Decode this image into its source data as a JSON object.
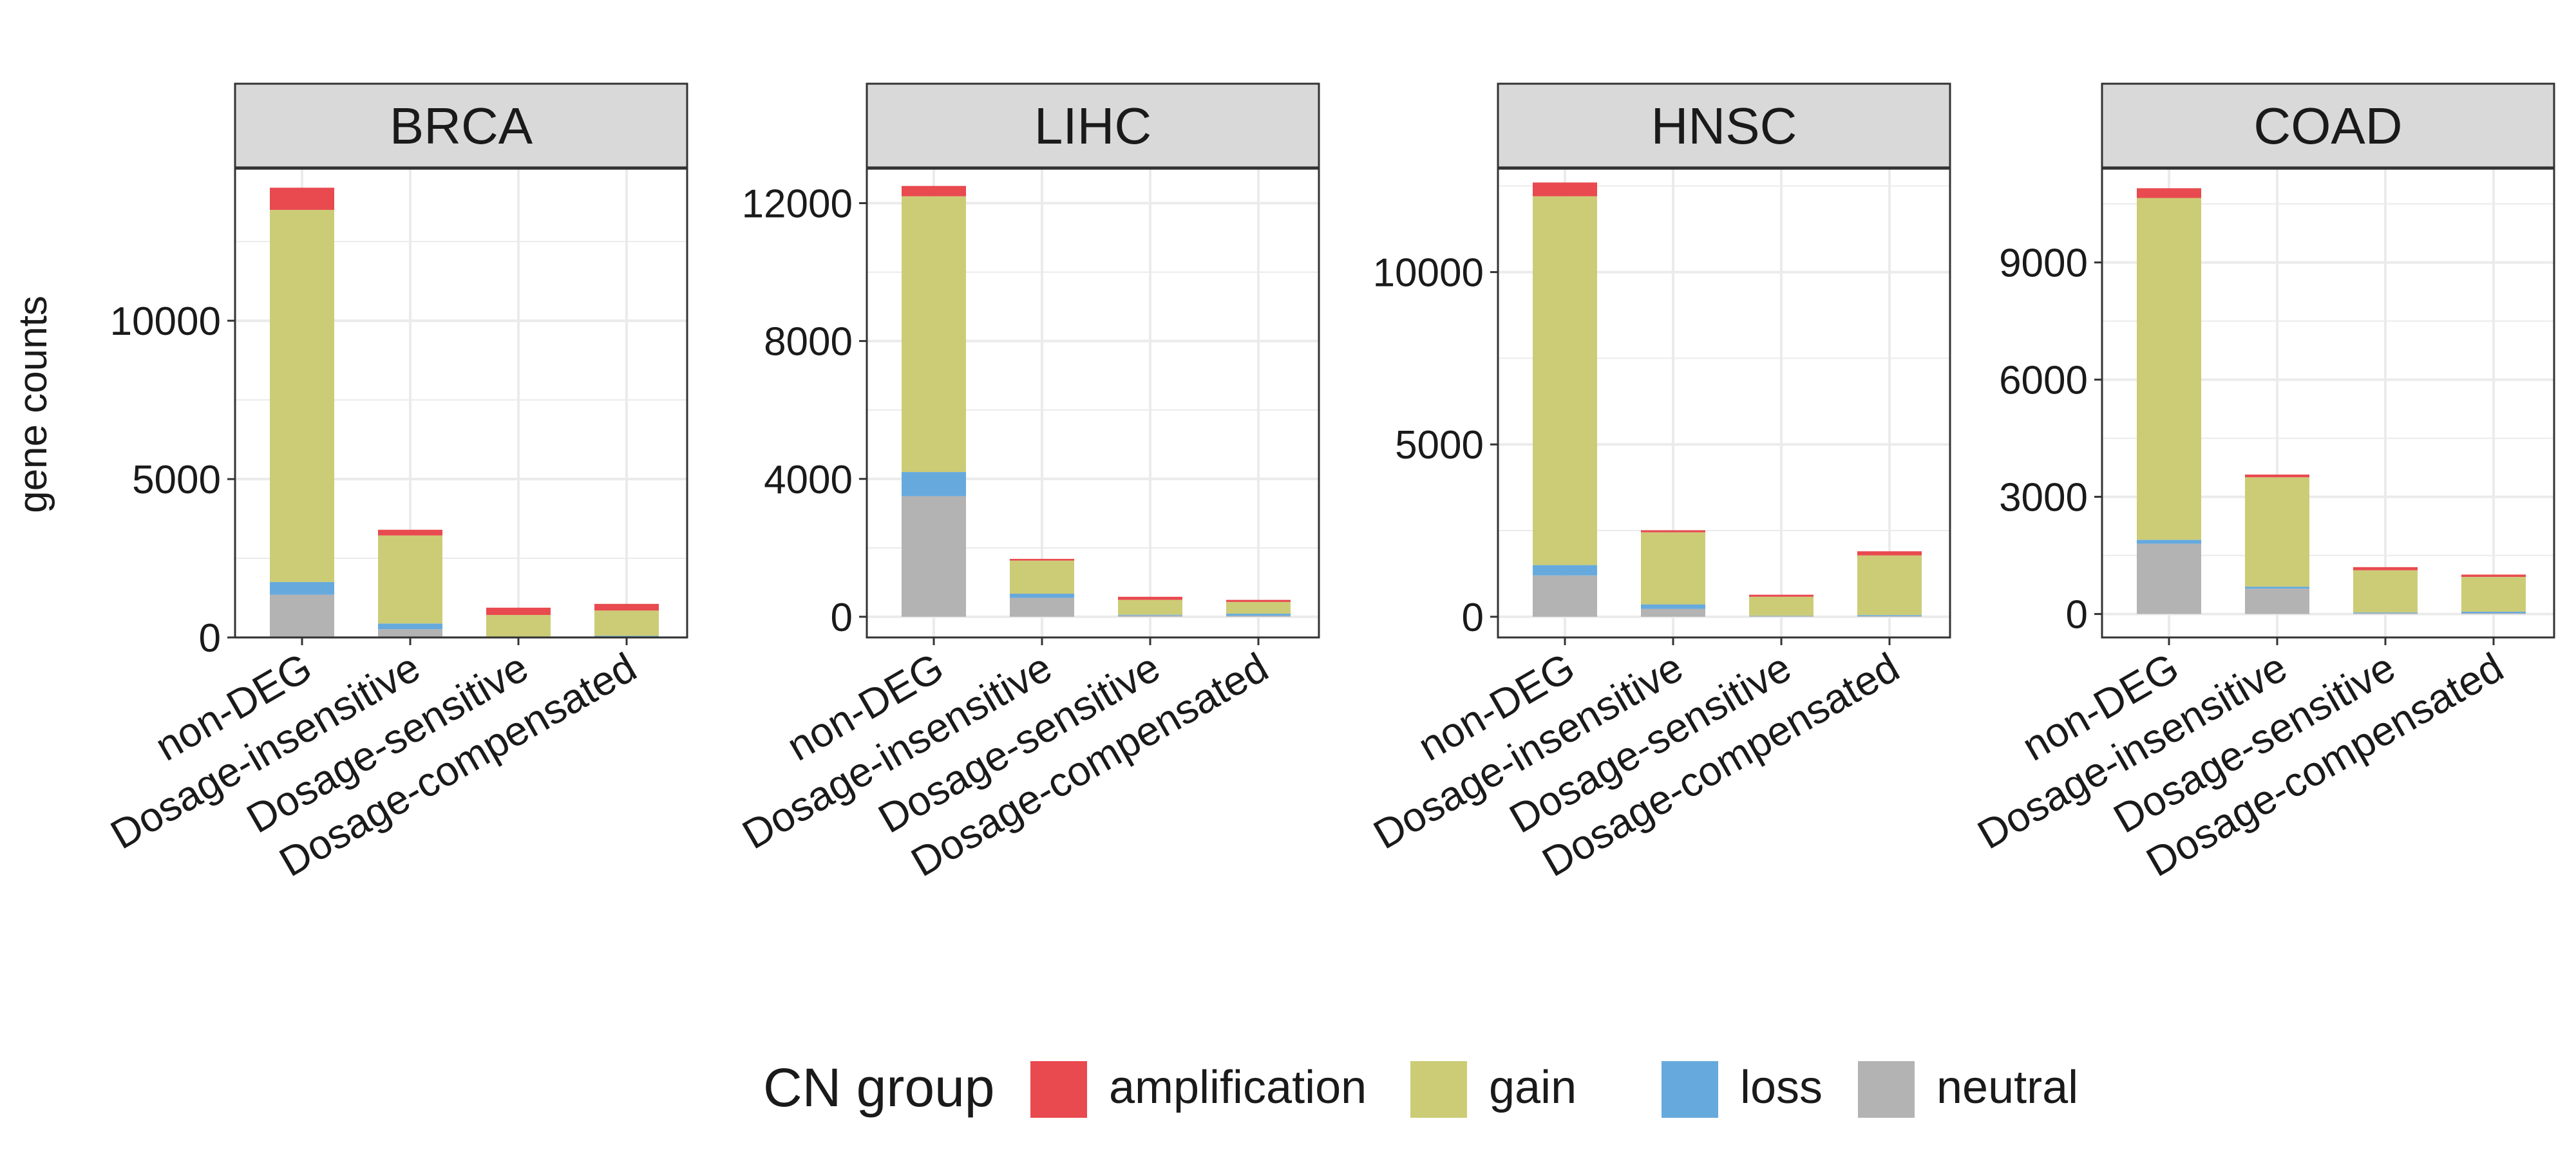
{
  "chart_data": [
    {
      "type": "bar",
      "stacked": true,
      "title": "BRCA",
      "categories": [
        "non-DEG",
        "Dosage-insensitive",
        "Dosage-sensitive",
        "Dosage-compensated"
      ],
      "ylim": [
        0,
        14800
      ],
      "yticks": [
        0,
        5000,
        10000
      ],
      "ytick_labels": [
        "0",
        "5000",
        "10000"
      ],
      "series": [
        {
          "name": "neutral",
          "values": [
            1350,
            260,
            20,
            30
          ]
        },
        {
          "name": "loss",
          "values": [
            400,
            180,
            10,
            20
          ]
        },
        {
          "name": "gain",
          "values": [
            11750,
            2780,
            680,
            800
          ]
        },
        {
          "name": "amplification",
          "values": [
            700,
            180,
            230,
            210
          ]
        }
      ]
    },
    {
      "type": "bar",
      "stacked": true,
      "title": "LIHC",
      "categories": [
        "non-DEG",
        "Dosage-insensitive",
        "Dosage-sensitive",
        "Dosage-compensated"
      ],
      "ylim": [
        -600,
        13000
      ],
      "yticks": [
        0,
        4000,
        8000,
        12000
      ],
      "ytick_labels": [
        "0",
        "4000",
        "8000",
        "12000"
      ],
      "series": [
        {
          "name": "neutral",
          "values": [
            3500,
            550,
            40,
            30
          ]
        },
        {
          "name": "loss",
          "values": [
            700,
            120,
            20,
            60
          ]
        },
        {
          "name": "gain",
          "values": [
            8000,
            960,
            430,
            340
          ]
        },
        {
          "name": "amplification",
          "values": [
            300,
            50,
            90,
            60
          ]
        }
      ]
    },
    {
      "type": "bar",
      "stacked": true,
      "title": "HNSC",
      "categories": [
        "non-DEG",
        "Dosage-insensitive",
        "Dosage-sensitive",
        "Dosage-compensated"
      ],
      "ylim": [
        -600,
        13000
      ],
      "yticks": [
        0,
        5000,
        10000
      ],
      "ytick_labels": [
        "0",
        "5000",
        "10000"
      ],
      "series": [
        {
          "name": "neutral",
          "values": [
            1200,
            230,
            20,
            20
          ]
        },
        {
          "name": "loss",
          "values": [
            300,
            130,
            10,
            30
          ]
        },
        {
          "name": "gain",
          "values": [
            10700,
            2090,
            550,
            1730
          ]
        },
        {
          "name": "amplification",
          "values": [
            400,
            60,
            60,
            120
          ]
        }
      ]
    },
    {
      "type": "bar",
      "stacked": true,
      "title": "COAD",
      "categories": [
        "non-DEG",
        "Dosage-insensitive",
        "Dosage-sensitive",
        "Dosage-compensated"
      ],
      "ylim": [
        -600,
        11400
      ],
      "yticks": [
        0,
        3000,
        6000,
        9000
      ],
      "ytick_labels": [
        "0",
        "3000",
        "6000",
        "9000"
      ],
      "series": [
        {
          "name": "neutral",
          "values": [
            1800,
            650,
            20,
            20
          ]
        },
        {
          "name": "loss",
          "values": [
            100,
            50,
            20,
            40
          ]
        },
        {
          "name": "gain",
          "values": [
            8750,
            2800,
            1080,
            890
          ]
        },
        {
          "name": "amplification",
          "values": [
            250,
            70,
            80,
            60
          ]
        }
      ]
    }
  ],
  "ylabel": "gene counts",
  "legend": {
    "title": "CN group",
    "position": "bottom",
    "items": [
      {
        "label": "amplification",
        "color": "#E84A4F"
      },
      {
        "label": "gain",
        "color": "#CCCC77"
      },
      {
        "label": "loss",
        "color": "#66AADD"
      },
      {
        "label": "neutral",
        "color": "#B3B3B3"
      }
    ]
  },
  "colors": {
    "amplification": "#E84A4F",
    "gain": "#CCCC77",
    "loss": "#66AADD",
    "neutral": "#B3B3B3",
    "strip_fill": "#D9D9D9",
    "gridline": "#EBEBEB",
    "panel_border": "#333333"
  }
}
